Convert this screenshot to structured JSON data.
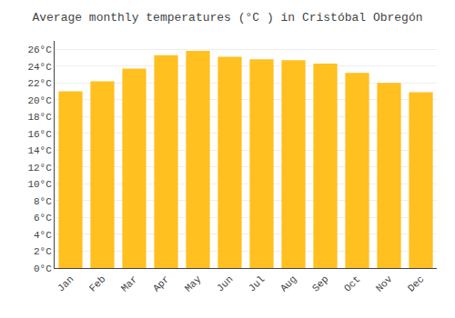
{
  "chart_data": {
    "type": "bar",
    "title": "Average monthly temperatures (°C ) in Cristóbal Obregón",
    "categories": [
      "Jan",
      "Feb",
      "Mar",
      "Apr",
      "May",
      "Jun",
      "Jul",
      "Aug",
      "Sep",
      "Oct",
      "Nov",
      "Dec"
    ],
    "values": [
      21.0,
      22.2,
      23.7,
      25.3,
      25.8,
      25.1,
      24.8,
      24.7,
      24.3,
      23.2,
      22.0,
      20.9
    ],
    "color": "#FFC020",
    "ylim": [
      0,
      27
    ],
    "yticks": [
      {
        "value": 0,
        "label": "0°C"
      },
      {
        "value": 2,
        "label": "2°C"
      },
      {
        "value": 4,
        "label": "4°C"
      },
      {
        "value": 6,
        "label": "6°C"
      },
      {
        "value": 8,
        "label": "8°C"
      },
      {
        "value": 10,
        "label": "10°C"
      },
      {
        "value": 12,
        "label": "12°C"
      },
      {
        "value": 14,
        "label": "14°C"
      },
      {
        "value": 16,
        "label": "16°C"
      },
      {
        "value": 18,
        "label": "18°C"
      },
      {
        "value": 20,
        "label": "20°C"
      },
      {
        "value": 22,
        "label": "22°C"
      },
      {
        "value": 24,
        "label": "24°C"
      },
      {
        "value": 26,
        "label": "26°C"
      }
    ],
    "grid": true
  }
}
